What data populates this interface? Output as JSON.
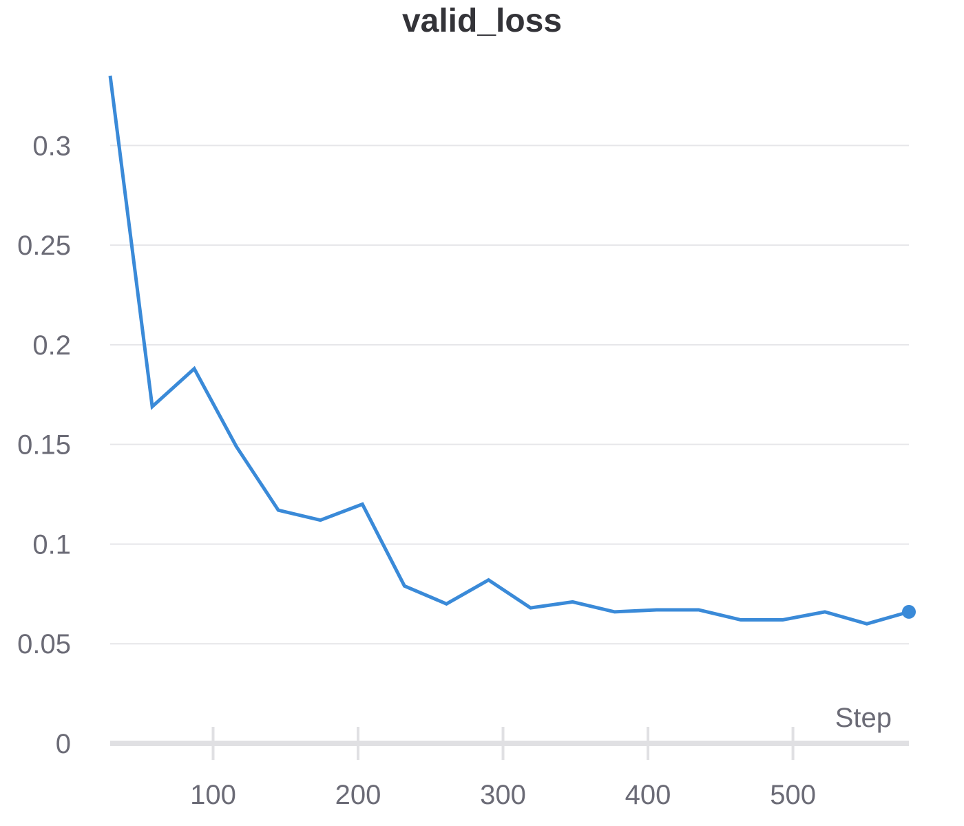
{
  "chart_data": {
    "type": "line",
    "title": "valid_loss",
    "xlabel": "Step",
    "ylabel": "",
    "xlim": [
      29,
      580
    ],
    "ylim": [
      0,
      0.335
    ],
    "x_ticks": [
      100,
      200,
      300,
      400,
      500
    ],
    "x_tick_labels": [
      "100",
      "200",
      "300",
      "400",
      "500"
    ],
    "y_ticks": [
      0,
      0.05,
      0.1,
      0.15,
      0.2,
      0.25,
      0.3
    ],
    "y_tick_labels": [
      "0",
      "0.05",
      "0.1",
      "0.15",
      "0.2",
      "0.25",
      "0.3"
    ],
    "grid": true,
    "legend": "none",
    "series": [
      {
        "color": "#3a8ad8",
        "x": [
          29,
          58,
          87,
          116,
          145,
          174,
          203,
          232,
          261,
          290,
          319,
          348,
          377,
          406,
          435,
          464,
          493,
          522,
          551,
          580
        ],
        "y": [
          0.335,
          0.169,
          0.188,
          0.149,
          0.117,
          0.112,
          0.12,
          0.079,
          0.07,
          0.082,
          0.068,
          0.071,
          0.066,
          0.067,
          0.067,
          0.062,
          0.062,
          0.066,
          0.06,
          0.066
        ]
      }
    ]
  }
}
